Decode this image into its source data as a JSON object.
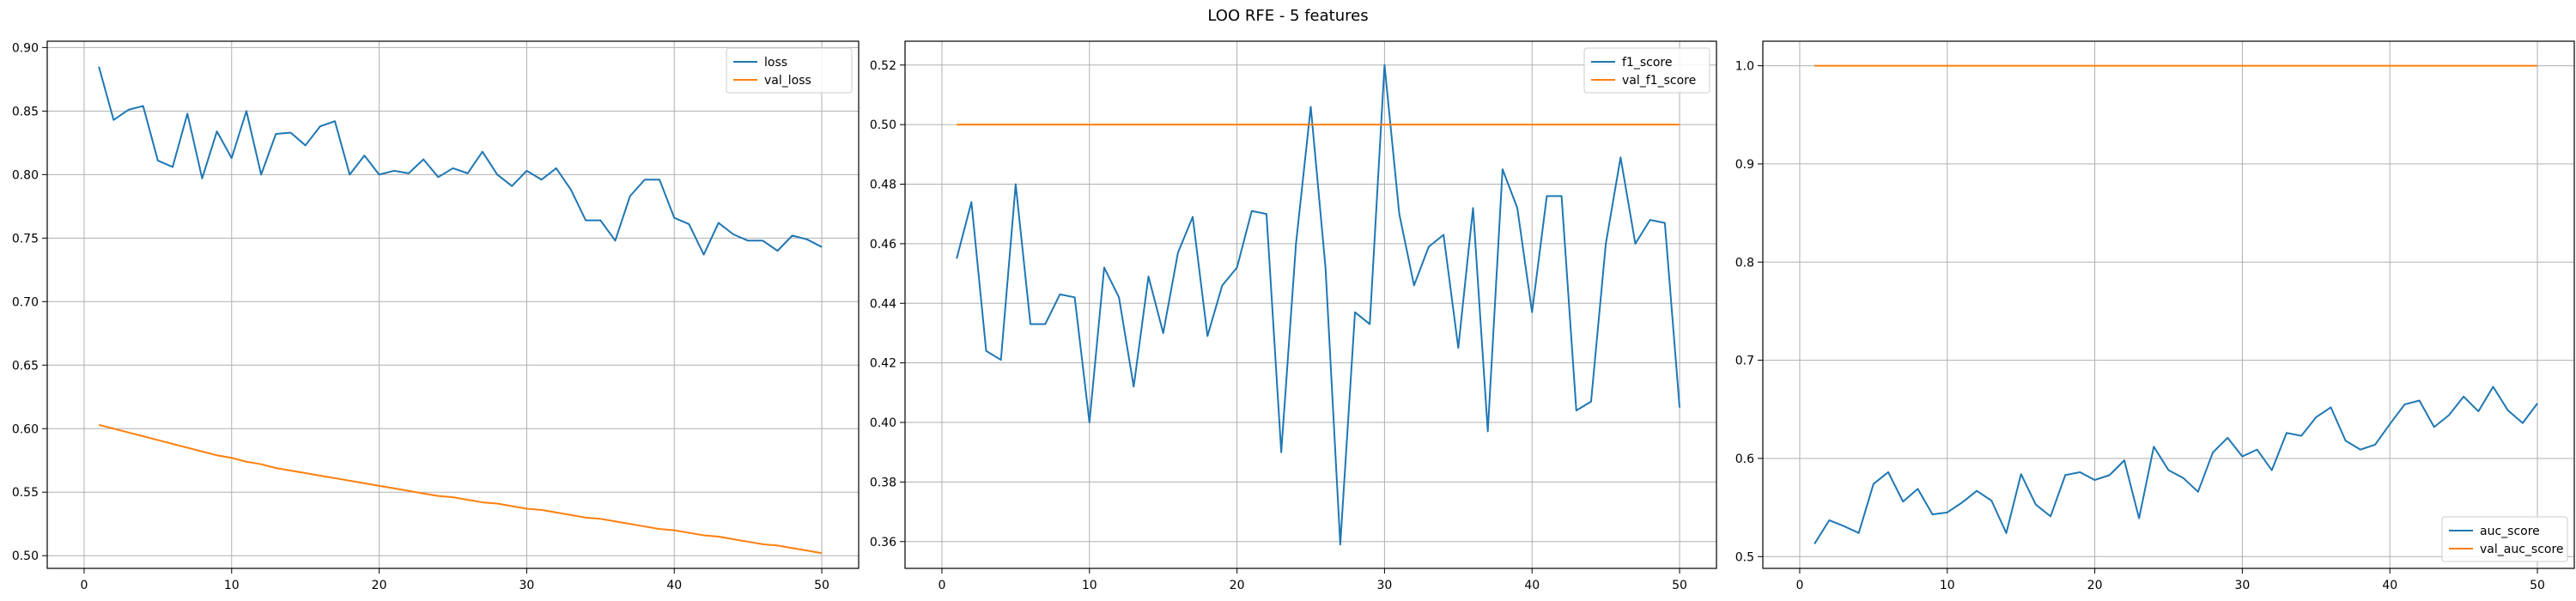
{
  "figure": {
    "title": "LOO RFE - 5 features"
  },
  "colors": {
    "series_1": "#1f77b4",
    "series_2": "#ff7f0e",
    "grid": "#b0b0b0"
  },
  "chart_data": [
    {
      "type": "line",
      "title": "",
      "xlabel": "",
      "ylabel": "",
      "grid": true,
      "legend_position": "upper right",
      "xlim": [
        -2.5,
        52.5
      ],
      "ylim": [
        0.49,
        0.905
      ],
      "xticks": [
        0,
        10,
        20,
        30,
        40,
        50
      ],
      "yticks": [
        0.5,
        0.55,
        0.6,
        0.65,
        0.7,
        0.75,
        0.8,
        0.85,
        0.9
      ],
      "ytick_decimals": 2,
      "x": [
        1,
        2,
        3,
        4,
        5,
        6,
        7,
        8,
        9,
        10,
        11,
        12,
        13,
        14,
        15,
        16,
        17,
        18,
        19,
        20,
        21,
        22,
        23,
        24,
        25,
        26,
        27,
        28,
        29,
        30,
        31,
        32,
        33,
        34,
        35,
        36,
        37,
        38,
        39,
        40,
        41,
        42,
        43,
        44,
        45,
        46,
        47,
        48,
        49,
        50
      ],
      "series": [
        {
          "name": "loss",
          "color": "#1f77b4",
          "values": [
            0.885,
            0.843,
            0.851,
            0.854,
            0.811,
            0.806,
            0.848,
            0.797,
            0.834,
            0.813,
            0.85,
            0.8,
            0.832,
            0.833,
            0.823,
            0.838,
            0.842,
            0.8,
            0.815,
            0.8,
            0.803,
            0.801,
            0.812,
            0.798,
            0.805,
            0.801,
            0.818,
            0.8,
            0.791,
            0.803,
            0.796,
            0.805,
            0.788,
            0.764,
            0.764,
            0.748,
            0.783,
            0.796,
            0.796,
            0.766,
            0.761,
            0.737,
            0.762,
            0.753,
            0.748,
            0.748,
            0.74,
            0.752,
            0.749,
            0.743
          ]
        },
        {
          "name": "val_loss",
          "color": "#ff7f0e",
          "values": [
            0.603,
            0.6,
            0.597,
            0.594,
            0.591,
            0.588,
            0.585,
            0.582,
            0.579,
            0.577,
            0.574,
            0.572,
            0.569,
            0.567,
            0.565,
            0.563,
            0.561,
            0.559,
            0.557,
            0.555,
            0.553,
            0.551,
            0.549,
            0.547,
            0.546,
            0.544,
            0.542,
            0.541,
            0.539,
            0.537,
            0.536,
            0.534,
            0.532,
            0.53,
            0.529,
            0.527,
            0.525,
            0.523,
            0.521,
            0.52,
            0.518,
            0.516,
            0.515,
            0.513,
            0.511,
            0.509,
            0.508,
            0.506,
            0.504,
            0.502
          ]
        }
      ]
    },
    {
      "type": "line",
      "title": "",
      "xlabel": "",
      "ylabel": "",
      "grid": true,
      "legend_position": "upper right",
      "xlim": [
        -2.5,
        52.5
      ],
      "ylim": [
        0.351,
        0.528
      ],
      "xticks": [
        0,
        10,
        20,
        30,
        40,
        50
      ],
      "yticks": [
        0.36,
        0.38,
        0.4,
        0.42,
        0.44,
        0.46,
        0.48,
        0.5,
        0.52
      ],
      "ytick_decimals": 2,
      "x": [
        1,
        2,
        3,
        4,
        5,
        6,
        7,
        8,
        9,
        10,
        11,
        12,
        13,
        14,
        15,
        16,
        17,
        18,
        19,
        20,
        21,
        22,
        23,
        24,
        25,
        26,
        27,
        28,
        29,
        30,
        31,
        32,
        33,
        34,
        35,
        36,
        37,
        38,
        39,
        40,
        41,
        42,
        43,
        44,
        45,
        46,
        47,
        48,
        49,
        50
      ],
      "series": [
        {
          "name": "f1_score",
          "color": "#1f77b4",
          "values": [
            0.455,
            0.474,
            0.424,
            0.421,
            0.48,
            0.433,
            0.433,
            0.443,
            0.442,
            0.4,
            0.452,
            0.442,
            0.412,
            0.449,
            0.43,
            0.457,
            0.469,
            0.429,
            0.446,
            0.452,
            0.471,
            0.47,
            0.39,
            0.46,
            0.506,
            0.452,
            0.359,
            0.437,
            0.433,
            0.52,
            0.47,
            0.446,
            0.459,
            0.463,
            0.425,
            0.472,
            0.397,
            0.485,
            0.472,
            0.437,
            0.476,
            0.476,
            0.404,
            0.407,
            0.46,
            0.489,
            0.46,
            0.468,
            0.467,
            0.405
          ]
        },
        {
          "name": "val_f1_score",
          "color": "#ff7f0e",
          "values": [
            0.5,
            0.5,
            0.5,
            0.5,
            0.5,
            0.5,
            0.5,
            0.5,
            0.5,
            0.5,
            0.5,
            0.5,
            0.5,
            0.5,
            0.5,
            0.5,
            0.5,
            0.5,
            0.5,
            0.5,
            0.5,
            0.5,
            0.5,
            0.5,
            0.5,
            0.5,
            0.5,
            0.5,
            0.5,
            0.5,
            0.5,
            0.5,
            0.5,
            0.5,
            0.5,
            0.5,
            0.5,
            0.5,
            0.5,
            0.5,
            0.5,
            0.5,
            0.5,
            0.5,
            0.5,
            0.5,
            0.5,
            0.5,
            0.5,
            0.5
          ]
        }
      ]
    },
    {
      "type": "line",
      "title": "",
      "xlabel": "",
      "ylabel": "",
      "grid": true,
      "legend_position": "lower right",
      "xlim": [
        -2.5,
        52.5
      ],
      "ylim": [
        0.488,
        1.025
      ],
      "xticks": [
        0,
        10,
        20,
        30,
        40,
        50
      ],
      "yticks": [
        0.5,
        0.6,
        0.7,
        0.8,
        0.9,
        1.0
      ],
      "ytick_decimals": 1,
      "x": [
        1,
        2,
        3,
        4,
        5,
        6,
        7,
        8,
        9,
        10,
        11,
        12,
        13,
        14,
        15,
        16,
        17,
        18,
        19,
        20,
        21,
        22,
        23,
        24,
        25,
        26,
        27,
        28,
        29,
        30,
        31,
        32,
        33,
        34,
        35,
        36,
        37,
        38,
        39,
        40,
        41,
        42,
        43,
        44,
        45,
        46,
        47,
        48,
        49,
        50
      ],
      "series": [
        {
          "name": "auc_score",
          "color": "#1f77b4",
          "values": [
            0.513,
            0.537,
            0.531,
            0.524,
            0.574,
            0.586,
            0.556,
            0.569,
            0.543,
            0.545,
            0.555,
            0.567,
            0.557,
            0.524,
            0.584,
            0.553,
            0.541,
            0.583,
            0.586,
            0.578,
            0.583,
            0.598,
            0.539,
            0.612,
            0.588,
            0.58,
            0.566,
            0.606,
            0.621,
            0.602,
            0.609,
            0.588,
            0.626,
            0.623,
            0.642,
            0.652,
            0.618,
            0.609,
            0.614,
            0.635,
            0.655,
            0.659,
            0.632,
            0.644,
            0.663,
            0.648,
            0.673,
            0.649,
            0.636,
            0.656
          ]
        },
        {
          "name": "val_auc_score",
          "color": "#ff7f0e",
          "values": [
            1.0,
            1.0,
            1.0,
            1.0,
            1.0,
            1.0,
            1.0,
            1.0,
            1.0,
            1.0,
            1.0,
            1.0,
            1.0,
            1.0,
            1.0,
            1.0,
            1.0,
            1.0,
            1.0,
            1.0,
            1.0,
            1.0,
            1.0,
            1.0,
            1.0,
            1.0,
            1.0,
            1.0,
            1.0,
            1.0,
            1.0,
            1.0,
            1.0,
            1.0,
            1.0,
            1.0,
            1.0,
            1.0,
            1.0,
            1.0,
            1.0,
            1.0,
            1.0,
            1.0,
            1.0,
            1.0,
            1.0,
            1.0,
            1.0,
            1.0
          ]
        }
      ]
    }
  ]
}
